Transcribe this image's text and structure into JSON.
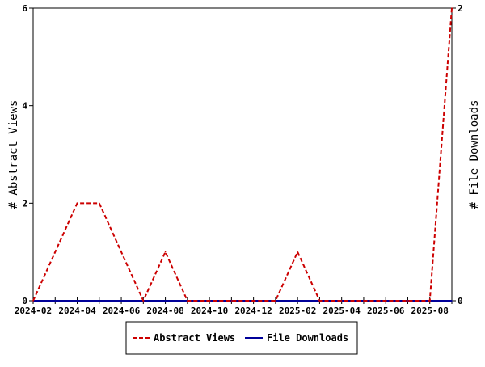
{
  "chart_data": {
    "type": "line",
    "x_dates": [
      "2024-02",
      "2024-03",
      "2024-04",
      "2024-05",
      "2024-06",
      "2024-07",
      "2024-08",
      "2024-09",
      "2024-10",
      "2024-11",
      "2024-12",
      "2025-01",
      "2025-02",
      "2025-03",
      "2025-04",
      "2025-05",
      "2025-06",
      "2025-07",
      "2025-08",
      "2025-09"
    ],
    "x_ticks": [
      "2024-02",
      "2024-04",
      "2024-06",
      "2024-08",
      "2024-10",
      "2024-12",
      "2025-02",
      "2025-04",
      "2025-06",
      "2025-08"
    ],
    "series": [
      {
        "name": "Abstract Views",
        "axis": "left",
        "color": "#cc0000",
        "dash": "dashed",
        "values": [
          0,
          1,
          2,
          2,
          1,
          0,
          1,
          0,
          0,
          0,
          0,
          0,
          1,
          0,
          0,
          0,
          0,
          0,
          0,
          6
        ]
      },
      {
        "name": "File Downloads",
        "axis": "right",
        "color": "#000099",
        "dash": "solid",
        "values": [
          0,
          0,
          0,
          0,
          0,
          0,
          0,
          0,
          0,
          0,
          0,
          0,
          0,
          0,
          0,
          0,
          0,
          0,
          0,
          0
        ]
      }
    ],
    "y_left": {
      "label": "# Abstract Views",
      "ticks": [
        0,
        2,
        4,
        6
      ],
      "range": [
        0,
        6
      ]
    },
    "y_right": {
      "label": "# File Downloads",
      "ticks": [
        0,
        2
      ],
      "range": [
        0,
        2
      ]
    },
    "legend": {
      "position": "bottom-center"
    },
    "grid": false
  }
}
